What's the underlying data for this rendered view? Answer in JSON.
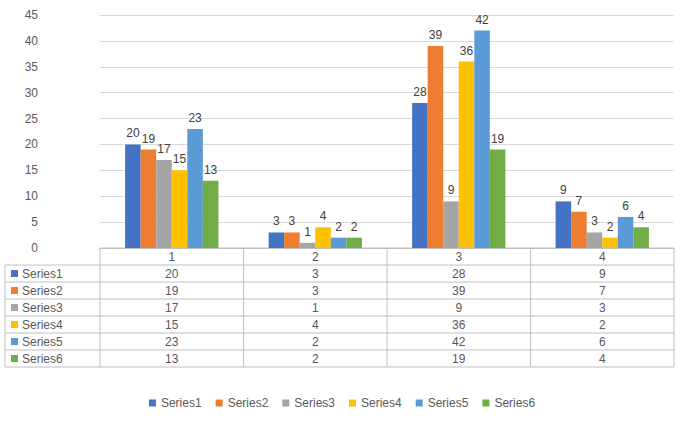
{
  "chart_data": {
    "type": "bar",
    "categories": [
      "1",
      "2",
      "3",
      "4"
    ],
    "series": [
      {
        "name": "Series1",
        "color": "#4472C4",
        "values": [
          20,
          3,
          28,
          9
        ]
      },
      {
        "name": "Series2",
        "color": "#ED7D31",
        "values": [
          19,
          3,
          39,
          7
        ]
      },
      {
        "name": "Series3",
        "color": "#A5A5A5",
        "values": [
          17,
          1,
          9,
          3
        ]
      },
      {
        "name": "Series4",
        "color": "#FFC000",
        "values": [
          15,
          4,
          36,
          2
        ]
      },
      {
        "name": "Series5",
        "color": "#5B9BD5",
        "values": [
          23,
          2,
          42,
          6
        ]
      },
      {
        "name": "Series6",
        "color": "#70AD47",
        "values": [
          13,
          2,
          19,
          4
        ]
      }
    ],
    "ylim": [
      0,
      45
    ],
    "yticks": [
      0,
      5,
      10,
      15,
      20,
      25,
      30,
      35,
      40,
      45
    ],
    "grid": true,
    "data_labels": true,
    "legend": "bottom"
  }
}
